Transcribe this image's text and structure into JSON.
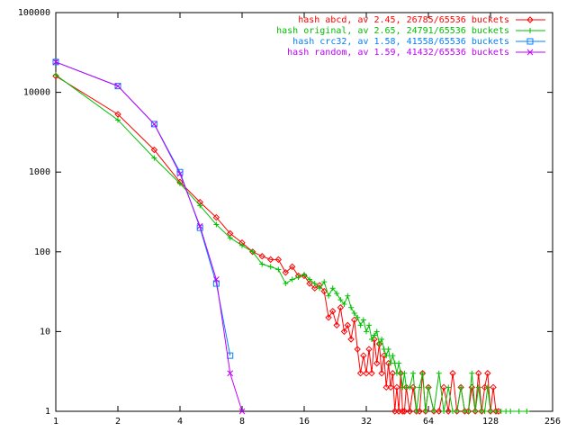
{
  "chart_data": {
    "type": "line",
    "xscale": "log",
    "yscale": "log",
    "xlim": [
      1,
      256
    ],
    "xticks": [
      1,
      2,
      4,
      8,
      16,
      32,
      64,
      128,
      256
    ],
    "ylim": [
      1,
      100000
    ],
    "yticks": [
      1,
      10,
      100,
      1000,
      10000,
      100000
    ],
    "legend": "top-right",
    "series": [
      {
        "name": "hash abcd, av 2.45, 26785/65536 buckets",
        "color": "#ff0000",
        "marker": "diamond",
        "x": [
          1,
          2,
          3,
          4,
          5,
          6,
          7,
          8,
          9,
          10,
          11,
          12,
          13,
          14,
          15,
          16,
          17,
          18,
          19,
          20,
          21,
          22,
          23,
          24,
          25,
          26,
          27,
          28,
          29,
          30,
          31,
          32,
          33,
          34,
          35,
          36,
          37,
          38,
          39,
          40,
          41,
          42,
          43,
          44,
          45,
          46,
          47,
          48,
          49,
          50,
          52,
          54,
          56,
          58,
          60,
          62,
          64,
          68,
          72,
          76,
          80,
          84,
          88,
          92,
          96,
          100,
          104,
          108,
          112,
          116,
          120,
          124,
          128,
          132,
          136,
          140
        ],
        "values": [
          16000,
          5300,
          1900,
          750,
          420,
          270,
          170,
          130,
          100,
          88,
          80,
          80,
          55,
          65,
          50,
          50,
          40,
          35,
          38,
          32,
          15,
          18,
          12,
          20,
          10,
          12,
          8,
          14,
          6,
          3,
          5,
          3,
          6,
          3,
          8,
          4,
          7,
          3,
          5,
          2,
          4,
          2,
          3,
          1,
          2,
          1,
          3,
          1,
          1,
          2,
          1,
          2,
          1,
          1,
          3,
          1,
          2,
          1,
          1,
          2,
          1,
          3,
          1,
          2,
          1,
          1,
          2,
          1,
          3,
          1,
          2,
          3,
          1,
          2,
          1,
          1
        ]
      },
      {
        "name": "hash original, av 2.65, 24791/65536 buckets",
        "color": "#00c000",
        "marker": "plus",
        "x": [
          1,
          2,
          3,
          4,
          5,
          6,
          7,
          8,
          9,
          10,
          11,
          12,
          13,
          14,
          15,
          16,
          17,
          18,
          19,
          20,
          21,
          22,
          23,
          24,
          25,
          26,
          27,
          28,
          29,
          30,
          31,
          32,
          33,
          34,
          35,
          36,
          37,
          38,
          39,
          40,
          41,
          42,
          43,
          44,
          45,
          46,
          47,
          48,
          49,
          50,
          52,
          54,
          56,
          58,
          60,
          62,
          64,
          68,
          72,
          76,
          80,
          84,
          88,
          92,
          96,
          100,
          104,
          108,
          112,
          116,
          120,
          124,
          128,
          136,
          144,
          152,
          160,
          176,
          192
        ],
        "values": [
          16500,
          4500,
          1500,
          720,
          380,
          220,
          150,
          120,
          100,
          70,
          65,
          60,
          40,
          45,
          48,
          52,
          45,
          40,
          35,
          42,
          28,
          35,
          30,
          25,
          22,
          28,
          20,
          17,
          15,
          12,
          14,
          10,
          12,
          8,
          9,
          10,
          7,
          8,
          6,
          5,
          6,
          4,
          5,
          4,
          3,
          4,
          3,
          2,
          3,
          2,
          2,
          3,
          1,
          2,
          3,
          1,
          2,
          1,
          3,
          1,
          2,
          1,
          1,
          2,
          1,
          1,
          3,
          1,
          2,
          1,
          1,
          2,
          1,
          1,
          1,
          1,
          1,
          1,
          1
        ]
      },
      {
        "name": "hash crc32, av 1.58, 41558/65536 buckets",
        "color": "#0080ff",
        "marker": "square",
        "x": [
          1,
          2,
          3,
          4,
          5,
          6,
          7
        ],
        "values": [
          24000,
          12000,
          4000,
          1000,
          200,
          40,
          5
        ]
      },
      {
        "name": "hash random, av 1.59, 41432/65536 buckets",
        "color": "#c000ff",
        "marker": "cross",
        "x": [
          1,
          2,
          3,
          4,
          5,
          6,
          7,
          8
        ],
        "values": [
          24000,
          12000,
          4000,
          950,
          210,
          45,
          3,
          1
        ]
      }
    ]
  }
}
